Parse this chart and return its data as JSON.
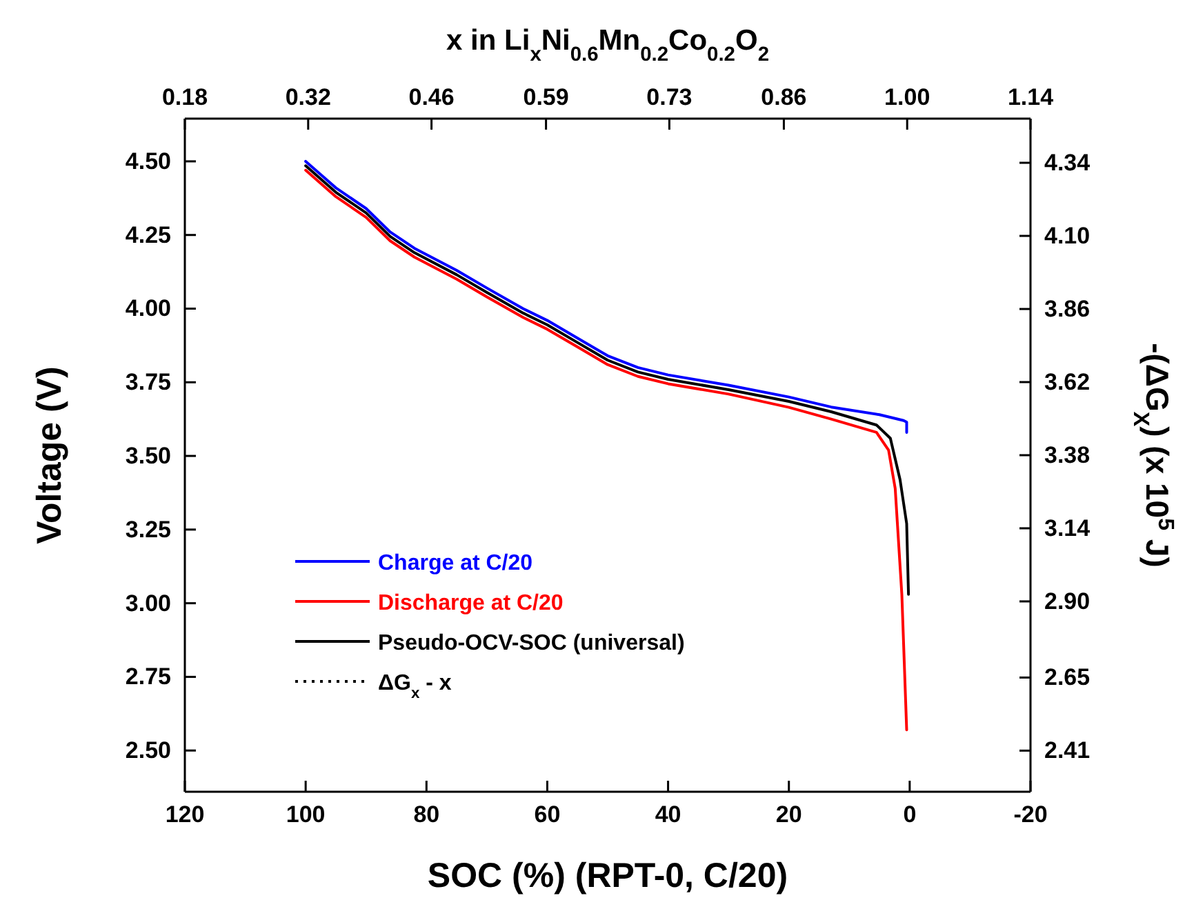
{
  "chart_data": {
    "type": "line",
    "xlabel": "SOC (%) (RPT-0, C/20)",
    "ylabel": "Voltage (V)",
    "y2label": "-(ΔG$_{X}$) (x 10$^{5}$ J)",
    "x2label": "x in Li$_{x}$Ni$_{0.6}$Mn$_{0.2}$Co$_{0.2}$O$_{2}$",
    "xlim": [
      120,
      -20
    ],
    "xticks": [
      120,
      100,
      80,
      60,
      40,
      20,
      0,
      -20
    ],
    "ylim": [
      2.36,
      4.645
    ],
    "yticks": [
      {
        "value": 2.5,
        "label": "2.50"
      },
      2.75,
      {
        "value": 3,
        "label": "3.00"
      },
      3.25,
      {
        "value": 3.5,
        "label": "3.50"
      },
      3.75,
      {
        "value": 4,
        "label": "4.00"
      },
      4.25,
      {
        "value": 4.5,
        "label": "4.50"
      }
    ],
    "y2lim": [
      2.275,
      4.485
    ],
    "y2ticks": [
      2.41,
      2.65,
      {
        "value": 2.9,
        "label": "2.90"
      },
      3.14,
      3.38,
      3.62,
      3.86,
      {
        "value": 4.1,
        "label": "4.10"
      },
      4.34
    ],
    "x2lim": [
      0.18,
      1.14
    ],
    "x2ticks": [
      0.18,
      0.32,
      0.46,
      0.59,
      0.73,
      0.86,
      {
        "value": 1,
        "label": "1.00"
      },
      1.14
    ],
    "grid": false,
    "legend": "bottom left",
    "marker": "none",
    "series": [
      {
        "name": "Charge at C/20",
        "color": "#0000ff",
        "line_style": "solid",
        "x": [
          100,
          95,
          90,
          86,
          82,
          75,
          70,
          64,
          60,
          55,
          50,
          45,
          40,
          30,
          20,
          13,
          5,
          1,
          0.5,
          0.5
        ],
        "values": [
          4.5,
          4.41,
          4.34,
          4.26,
          4.205,
          4.13,
          4.07,
          4.0,
          3.96,
          3.9,
          3.84,
          3.8,
          3.775,
          3.74,
          3.7,
          3.666,
          3.64,
          3.62,
          3.615,
          3.58
        ]
      },
      {
        "name": "Discharge at C/20",
        "color": "#ff0000",
        "line_style": "solid",
        "x": [
          100,
          95,
          90,
          86,
          82,
          75,
          70,
          64,
          60,
          55,
          50,
          45,
          40,
          30,
          20,
          13,
          5.5,
          3.5,
          2.4,
          1.3,
          0.5
        ],
        "values": [
          4.47,
          4.38,
          4.31,
          4.23,
          4.175,
          4.1,
          4.04,
          3.97,
          3.93,
          3.87,
          3.81,
          3.77,
          3.745,
          3.71,
          3.665,
          3.625,
          3.58,
          3.52,
          3.39,
          3.03,
          2.57
        ]
      },
      {
        "name": "Pseudo-OCV-SOC (universal)",
        "color": "#000000",
        "line_style": "solid",
        "x": [
          100,
          95,
          90,
          86,
          82,
          75,
          70,
          64,
          60,
          55,
          50,
          45,
          40,
          30,
          20,
          13,
          5.5,
          3.2,
          1.6,
          0.5,
          0.2
        ],
        "values": [
          4.485,
          4.395,
          4.325,
          4.245,
          4.19,
          4.115,
          4.055,
          3.985,
          3.945,
          3.885,
          3.825,
          3.785,
          3.76,
          3.725,
          3.685,
          3.65,
          3.605,
          3.56,
          3.42,
          3.27,
          3.03
        ]
      },
      {
        "name": "ΔG$_{x}$ - x",
        "color": "#000000",
        "line_style": "dotted"
      }
    ]
  }
}
